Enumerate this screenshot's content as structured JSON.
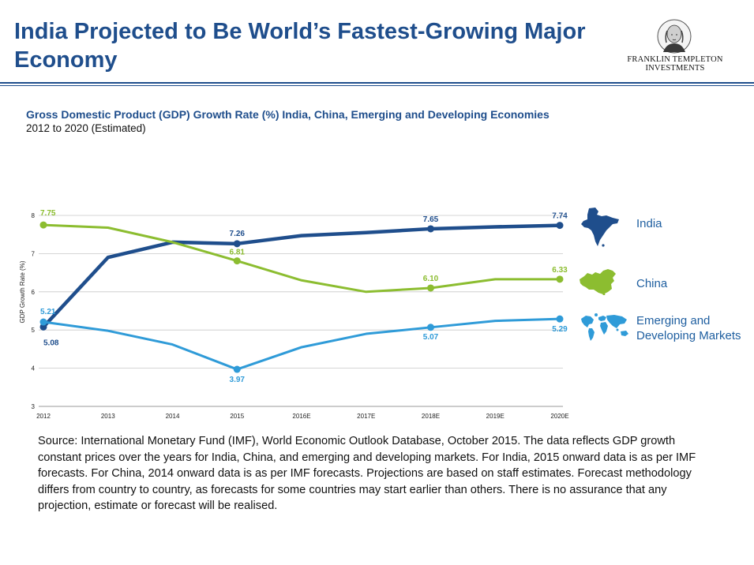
{
  "header": {
    "title": "India Projected to Be World’s Fastest-Growing Major Economy",
    "logo_line1": "FRANKLIN TEMPLETON",
    "logo_line2": "INVESTMENTS"
  },
  "subtitle": "Gross Domestic Product (GDP) Growth Rate (%) India, China, Emerging and Developing Economies",
  "subtitle2": "2012 to 2020 (Estimated)",
  "legend": {
    "india": "India",
    "china": "China",
    "emerging_line1": "Emerging and",
    "emerging_line2": "Developing Markets"
  },
  "legend_icons": {
    "india": "india-map-icon",
    "china": "china-map-icon",
    "emerging": "world-map-icon"
  },
  "colors": {
    "title": "#1f4e8c",
    "india": "#1f4e8c",
    "china": "#8cbd30",
    "emerging": "#2f9bd8"
  },
  "source": "Source: International Monetary Fund (IMF), World Economic Outlook Database, October 2015. The data reflects GDP growth constant prices over the years for India, China, and emerging and developing markets. For India, 2015 onward data is as per IMF forecasts. For China, 2014 onward data is as per IMF forecasts. Projections are based on staff estimates. Forecast methodology differs from country to country, as forecasts for some countries may start earlier than others. There is no assurance that any projection, estimate or forecast will be realised.",
  "chart_data": {
    "type": "line",
    "ylabel": "GDP Growth Rate (%)",
    "ylim": [
      3,
      8
    ],
    "yticks": [
      3,
      4,
      5,
      6,
      7,
      8
    ],
    "grid": true,
    "categories": [
      "2012",
      "2013",
      "2014",
      "2015",
      "2016E",
      "2017E",
      "2018E",
      "2019E",
      "2020E"
    ],
    "series": [
      {
        "name": "India",
        "color": "#1f4e8c",
        "values": [
          5.08,
          6.9,
          7.3,
          7.26,
          7.47,
          7.55,
          7.65,
          7.7,
          7.74
        ],
        "labels": [
          {
            "i": 0,
            "text": "5.08"
          },
          {
            "i": 3,
            "text": "7.26"
          },
          {
            "i": 6,
            "text": "7.65"
          },
          {
            "i": 8,
            "text": "7.74"
          }
        ]
      },
      {
        "name": "China",
        "color": "#8cbd30",
        "values": [
          7.75,
          7.68,
          7.3,
          6.81,
          6.3,
          6.0,
          6.1,
          6.33,
          6.33
        ],
        "labels": [
          {
            "i": 0,
            "text": "7.75"
          },
          {
            "i": 3,
            "text": "6.81"
          },
          {
            "i": 6,
            "text": "6.10"
          },
          {
            "i": 8,
            "text": "6.33"
          }
        ]
      },
      {
        "name": "Emerging and Developing Markets",
        "color": "#2f9bd8",
        "values": [
          5.21,
          4.98,
          4.62,
          3.97,
          4.55,
          4.9,
          5.07,
          5.24,
          5.29
        ],
        "labels": [
          {
            "i": 0,
            "text": "5.21"
          },
          {
            "i": 3,
            "text": "3.97"
          },
          {
            "i": 6,
            "text": "5.07"
          },
          {
            "i": 8,
            "text": "5.29"
          }
        ]
      }
    ]
  }
}
